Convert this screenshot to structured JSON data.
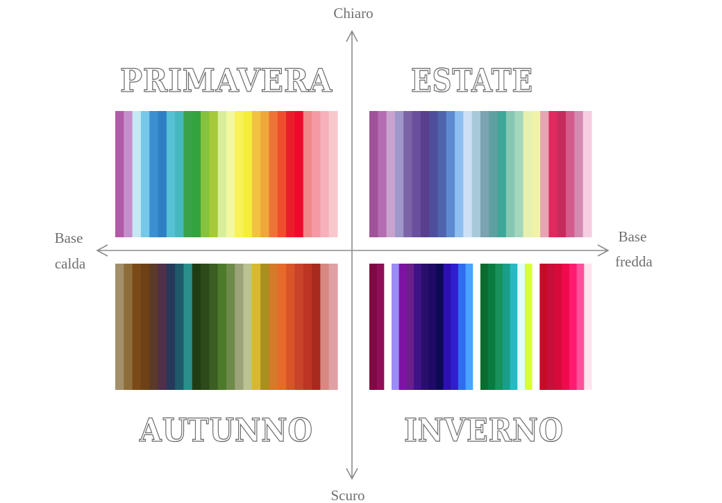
{
  "axes": {
    "top": "Chiaro",
    "bottom": "Scuro",
    "left": [
      "Base",
      "calda"
    ],
    "right": [
      "Base",
      "fredda"
    ]
  },
  "seasons": [
    {
      "key": "primavera",
      "title": "PRIMAVERA",
      "colors": [
        "#b35aa6",
        "#c58fcb",
        "#c7e8f2",
        "#75c8e8",
        "#3c8fd0",
        "#2f7fc4",
        "#56c0d4",
        "#45b8c0",
        "#3aa34a",
        "#33a33e",
        "#86c23d",
        "#a5c93a",
        "#d9ee9a",
        "#f3f7a0",
        "#f8f15a",
        "#f4ee3a",
        "#f2c242",
        "#f0a73a",
        "#ee7338",
        "#f04d2e",
        "#ea1e2b",
        "#ee0a2a",
        "#f08a8a",
        "#f59aa5",
        "#f8b0bb",
        "#f9c8cf"
      ]
    },
    {
      "key": "estate",
      "title": "ESTATE",
      "colors": [
        "#a05199",
        "#b46db0",
        "#c9a3cf",
        "#9f96c9",
        "#7c64a8",
        "#6a4f9c",
        "#5a3f8f",
        "#4e4f9c",
        "#4f64ad",
        "#5d8ad0",
        "#8fbff0",
        "#cde0f5",
        "#a8c9d8",
        "#7ba4b0",
        "#5fa0a2",
        "#3ea79a",
        "#86c7b4",
        "#a2d6bd",
        "#e6f0b0",
        "#f0f2a8",
        "#e7a4b2",
        "#de2a5f",
        "#c62b5e",
        "#d35c8c",
        "#d48bb2",
        "#f6cde2"
      ]
    },
    {
      "key": "autunno",
      "title": "AUTUNNO",
      "colors": [
        "#a3906a",
        "#8e6d3a",
        "#7a4a18",
        "#6e4216",
        "#5a3a28",
        "#4f2f4a",
        "#253a5a",
        "#1f5a6a",
        "#2a8f8a",
        "#1f3d14",
        "#2c4a1a",
        "#3a5e24",
        "#4c7a2a",
        "#6e8a4a",
        "#9ba378",
        "#bcc392",
        "#d8b830",
        "#a98f1e",
        "#d47a2a",
        "#e86a2a",
        "#d95428",
        "#c8432a",
        "#bd3522",
        "#a82a1e",
        "#d88883",
        "#e0a0a3"
      ]
    },
    {
      "key": "inverno",
      "title": "INVERNO",
      "colors": [
        "#7e0a45",
        "#8e0f55",
        "#ffffff",
        "#9b8cf5",
        "#7e12a3",
        "#6a1f8a",
        "#3f1385",
        "#2a0f6a",
        "#1f0a66",
        "#0d0a55",
        "#2d10b2",
        "#2f1fd0",
        "#2e6df0",
        "#4aa4ff",
        "#ffffff",
        "#0d6b2f",
        "#0a7a40",
        "#19915a",
        "#1a9e8a",
        "#26b9c4",
        "#e0fff8",
        "#d8ff3a",
        "#ffffff",
        "#c80a28",
        "#c80f3a",
        "#d80a3a",
        "#f00a4c",
        "#ff1b70",
        "#ff4f9c",
        "#ffe3ef"
      ]
    }
  ]
}
